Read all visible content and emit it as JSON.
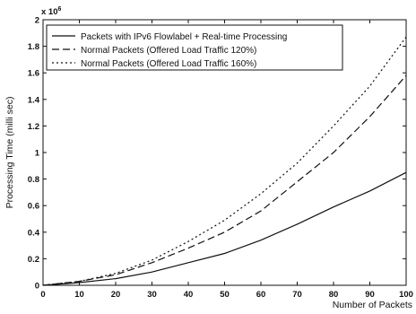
{
  "chart_data": {
    "type": "line",
    "xlabel": "Number of Packets",
    "ylabel": "Processing Time (milli sec)",
    "y_exponent_label": "x 10",
    "y_exponent_power": "6",
    "xlim": [
      0,
      100
    ],
    "ylim": [
      0,
      2
    ],
    "x_ticks": [
      "0",
      "10",
      "20",
      "30",
      "40",
      "50",
      "60",
      "70",
      "80",
      "90",
      "100"
    ],
    "y_ticks": [
      "0",
      "0.2",
      "0.4",
      "0.6",
      "0.8",
      "1",
      "1.2",
      "1.4",
      "1.6",
      "1.8",
      "2"
    ],
    "grid": false,
    "legend_position": "top-left",
    "x": [
      0,
      10,
      20,
      30,
      40,
      50,
      60,
      70,
      80,
      90,
      100
    ],
    "series": [
      {
        "name": "Packets with IPv6 Flowlabel + Real-time Processing",
        "style": "solid",
        "values": [
          0,
          0.02,
          0.05,
          0.1,
          0.17,
          0.24,
          0.34,
          0.46,
          0.59,
          0.71,
          0.85
        ]
      },
      {
        "name": "Normal Packets (Offered Load Traffic 120%)",
        "style": "dashed",
        "values": [
          0,
          0.03,
          0.08,
          0.17,
          0.28,
          0.4,
          0.56,
          0.78,
          1.0,
          1.27,
          1.58
        ]
      },
      {
        "name": "Normal Packets (Offered Load Traffic 160%)",
        "style": "dotted",
        "values": [
          0,
          0.03,
          0.09,
          0.19,
          0.33,
          0.49,
          0.69,
          0.92,
          1.2,
          1.5,
          1.87
        ]
      }
    ],
    "colors": {
      "lines": "#111111",
      "axes": "#111111",
      "background": "#ffffff"
    }
  }
}
